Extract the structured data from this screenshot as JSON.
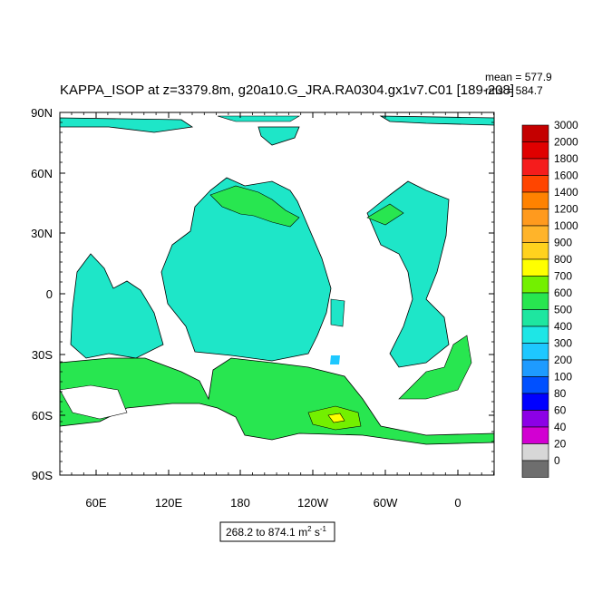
{
  "title": "KAPPA_ISOP at z=3379.8m, g20a10.G_JRA.RA0304.gx1v7.C01 [189-208]",
  "stats": {
    "mean": "mean = 577.9",
    "rms": "rms = 584.7"
  },
  "range_box": {
    "prefix": "268.2 to 874.1 m",
    "sup1": "2",
    "mid": " s",
    "sup2": "-1"
  },
  "lat_labels": [
    "90N",
    "60N",
    "30N",
    "0",
    "30S",
    "60S",
    "90S"
  ],
  "lon_labels": [
    "60E",
    "120E",
    "180",
    "120W",
    "60W",
    "0"
  ],
  "colorbar": {
    "labels": [
      "3000",
      "2000",
      "1800",
      "1600",
      "1400",
      "1200",
      "1000",
      "900",
      "800",
      "700",
      "600",
      "500",
      "400",
      "300",
      "200",
      "100",
      "80",
      "60",
      "40",
      "20",
      "0"
    ],
    "colors": [
      "#c40000",
      "#e00000",
      "#f51c1c",
      "#ff4500",
      "#ff8200",
      "#ff9a1e",
      "#ffb42a",
      "#ffd21e",
      "#ffff00",
      "#73f000",
      "#28e650",
      "#1ee6a0",
      "#1ee6e6",
      "#1ec8ff",
      "#1e9bff",
      "#0050ff",
      "#0000ff",
      "#8c00e6",
      "#d200d2",
      "#d7d7d7",
      "#6e6e6e"
    ]
  },
  "map_colors": {
    "land": "#ffffff",
    "low": "#1ee6c8",
    "mid": "#28e650",
    "high": "#73f000",
    "peak": "#ffff00",
    "deep": "#1ec8ff"
  }
}
